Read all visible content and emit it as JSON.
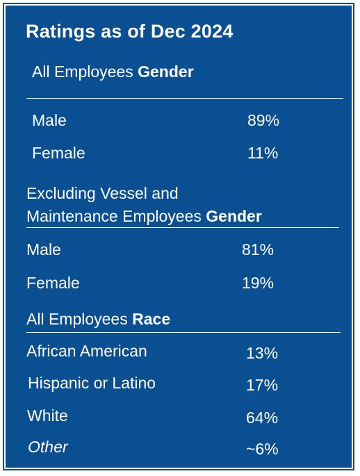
{
  "title": "Ratings as of Dec 2024",
  "sections": [
    {
      "heading_prefix": "All Employees ",
      "heading_bold": "Gender",
      "rows": [
        {
          "label": "Male",
          "value": "89%"
        },
        {
          "label": "Female",
          "value": "11%"
        }
      ]
    },
    {
      "heading_line1": "Excluding Vessel and",
      "heading_prefix": "Maintenance Employees ",
      "heading_bold": "Gender",
      "rows": [
        {
          "label": "Male",
          "value": "81%"
        },
        {
          "label": "Female",
          "value": "19%"
        }
      ]
    },
    {
      "heading_prefix": "All Employees ",
      "heading_bold": "Race",
      "rows": [
        {
          "label": "African American",
          "value": "13%"
        },
        {
          "label": "Hispanic or Latino",
          "value": "17%"
        },
        {
          "label": "White",
          "value": "64%"
        },
        {
          "label": "Other",
          "value": "~6%"
        }
      ]
    }
  ],
  "colors": {
    "panel": "#0b4f93",
    "text": "#ffffff"
  }
}
